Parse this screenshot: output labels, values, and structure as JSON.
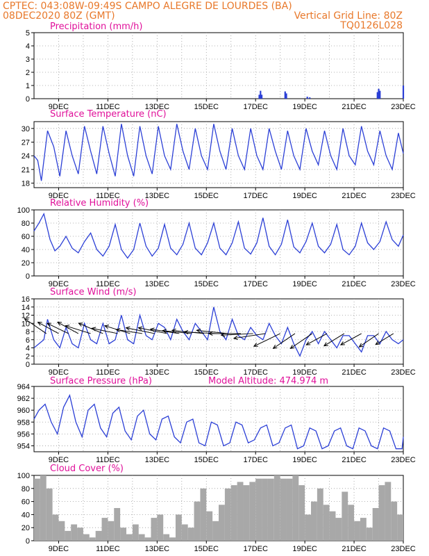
{
  "header": {
    "line1_left": "CPTEC:   043:08W-09:49S   CAMPO ALEGRE DE LOURDES (BA)",
    "line2_left": "08DEC2020 80Z (GMT)",
    "line2_right": "Vertical Grid Line: 80Z",
    "line3_right": "TQ0126L028"
  },
  "colors": {
    "header": "#e8782a",
    "panel_title": "#e0109a",
    "line": "#2b3fd6",
    "bar_precip": "#2b3fd6",
    "bar_cloud": "#a8a8a8",
    "wind_arrow": "#000000",
    "grid": "#9a9a9a"
  },
  "x_axis": {
    "start_day": 8,
    "end_day": 23,
    "ticks": [
      {
        "day": 9,
        "label": "9DEC"
      },
      {
        "day": 11,
        "label": "11DEC"
      },
      {
        "day": 13,
        "label": "13DEC"
      },
      {
        "day": 15,
        "label": "15DEC"
      },
      {
        "day": 17,
        "label": "17DEC"
      },
      {
        "day": 19,
        "label": "19DEC"
      },
      {
        "day": 21,
        "label": "21DEC"
      },
      {
        "day": 23,
        "label": "23DEC"
      }
    ]
  },
  "chart_data": [
    {
      "type": "bar",
      "title": "Precipitation (mm/h)",
      "ylim": [
        0,
        5
      ],
      "yticks": [
        "0",
        "1",
        "2",
        "3",
        "4",
        "5"
      ],
      "grid": true,
      "x": [
        17.15,
        17.2,
        17.25,
        18.2,
        18.25,
        19.1,
        19.2,
        21.95,
        22.0,
        22.05,
        23.0
      ],
      "values": [
        0.3,
        0.6,
        0.3,
        0.55,
        0.4,
        0.15,
        0.1,
        0.5,
        0.75,
        0.6,
        1.0
      ]
    },
    {
      "type": "line",
      "title": "Surface Temperature (nC)",
      "ylim": [
        17,
        31.5
      ],
      "yticks": [
        "18",
        "21",
        "24",
        "27",
        "30"
      ],
      "grid": true,
      "x": [
        8.0,
        8.15,
        8.3,
        8.55,
        8.8,
        9.05,
        9.3,
        9.55,
        9.8,
        10.05,
        10.3,
        10.55,
        10.8,
        11.05,
        11.3,
        11.55,
        11.8,
        12.05,
        12.3,
        12.55,
        12.8,
        13.05,
        13.3,
        13.55,
        13.8,
        14.05,
        14.3,
        14.55,
        14.8,
        15.05,
        15.3,
        15.55,
        15.8,
        16.05,
        16.3,
        16.55,
        16.8,
        17.05,
        17.3,
        17.55,
        17.8,
        18.05,
        18.3,
        18.55,
        18.8,
        19.05,
        19.3,
        19.55,
        19.8,
        20.05,
        20.3,
        20.55,
        20.8,
        21.05,
        21.3,
        21.55,
        21.8,
        22.05,
        22.3,
        22.55,
        22.8,
        23.0
      ],
      "values": [
        24,
        23,
        18.5,
        29.5,
        26,
        19.5,
        29.5,
        24,
        20,
        30.5,
        25,
        20,
        30.5,
        24.5,
        19.5,
        31,
        24,
        19.5,
        30.5,
        24,
        20,
        30.5,
        24,
        21,
        31,
        25,
        21,
        30,
        24,
        21,
        31,
        25,
        21,
        30,
        24,
        21,
        30,
        24,
        21,
        30,
        25,
        21,
        29.5,
        24,
        21,
        30,
        25,
        22,
        29.5,
        24,
        21,
        30,
        24,
        22,
        30.5,
        25,
        22,
        29.5,
        24,
        21,
        29,
        24.5
      ]
    },
    {
      "type": "line",
      "title": "Relative Humidity (%)",
      "ylim": [
        0,
        100
      ],
      "yticks": [
        "0",
        "20",
        "40",
        "60",
        "80",
        "100"
      ],
      "grid": true,
      "x": [
        8.0,
        8.2,
        8.4,
        8.65,
        8.85,
        9.05,
        9.3,
        9.55,
        9.8,
        10.05,
        10.3,
        10.55,
        10.8,
        11.05,
        11.3,
        11.55,
        11.8,
        12.05,
        12.3,
        12.55,
        12.8,
        13.05,
        13.3,
        13.55,
        13.8,
        14.05,
        14.3,
        14.55,
        14.8,
        15.05,
        15.3,
        15.55,
        15.8,
        16.05,
        16.3,
        16.55,
        16.8,
        17.05,
        17.3,
        17.55,
        17.8,
        18.05,
        18.3,
        18.55,
        18.8,
        19.05,
        19.3,
        19.55,
        19.8,
        20.05,
        20.3,
        20.55,
        20.8,
        21.05,
        21.3,
        21.55,
        21.8,
        22.05,
        22.3,
        22.55,
        22.8,
        23.0
      ],
      "values": [
        68,
        80,
        94,
        55,
        38,
        45,
        60,
        42,
        35,
        52,
        65,
        40,
        30,
        45,
        78,
        40,
        27,
        40,
        80,
        45,
        30,
        42,
        78,
        42,
        32,
        48,
        80,
        42,
        32,
        50,
        80,
        42,
        32,
        50,
        82,
        42,
        33,
        50,
        88,
        45,
        32,
        48,
        85,
        44,
        35,
        52,
        80,
        45,
        35,
        48,
        78,
        40,
        32,
        45,
        80,
        50,
        40,
        52,
        82,
        55,
        45,
        62
      ]
    },
    {
      "type": "line",
      "title": "Surface Wind (m/s)",
      "ylim": [
        0,
        16
      ],
      "yticks": [
        "0",
        "2",
        "4",
        "6",
        "8",
        "10",
        "12",
        "14",
        "16"
      ],
      "grid": true,
      "x": [
        8.0,
        8.2,
        8.4,
        8.55,
        8.8,
        9.05,
        9.3,
        9.55,
        9.8,
        10.05,
        10.3,
        10.55,
        10.8,
        11.05,
        11.3,
        11.55,
        11.8,
        12.05,
        12.3,
        12.55,
        12.8,
        13.05,
        13.3,
        13.55,
        13.8,
        14.05,
        14.3,
        14.55,
        14.8,
        15.05,
        15.3,
        15.55,
        15.8,
        16.05,
        16.3,
        16.55,
        16.8,
        17.05,
        17.3,
        17.55,
        17.8,
        18.05,
        18.3,
        18.55,
        18.8,
        19.05,
        19.3,
        19.55,
        19.8,
        20.05,
        20.3,
        20.55,
        20.8,
        21.05,
        21.3,
        21.55,
        21.8,
        22.05,
        22.3,
        22.55,
        22.8,
        23.0
      ],
      "values": [
        4,
        5,
        6,
        11,
        6,
        4,
        9,
        5,
        4,
        10,
        6,
        5,
        10,
        5,
        6,
        12,
        6,
        5,
        12,
        7,
        6,
        10,
        9,
        6,
        11,
        8,
        6,
        10,
        8,
        6,
        14,
        8,
        6,
        11,
        7,
        6,
        9,
        7,
        6,
        10,
        7,
        5,
        9,
        5,
        2,
        6,
        8,
        5,
        8,
        6,
        4,
        7,
        7,
        5,
        3,
        7,
        7,
        5,
        8,
        6,
        5,
        6
      ],
      "arrows_x": [
        8.5,
        9.0,
        9.4,
        9.8,
        10.3,
        10.8,
        11.4,
        11.9,
        12.4,
        12.9,
        13.4,
        13.9,
        14.4,
        14.9,
        15.4,
        15.9,
        16.4,
        16.9,
        17.4,
        18.0,
        18.6,
        19.3,
        19.9,
        20.6,
        21.3,
        22.0,
        22.6
      ],
      "arrows_dir": [
        -0.6,
        -0.5,
        -0.45,
        -0.5,
        -0.3,
        -0.4,
        -0.2,
        -0.3,
        -0.15,
        -0.2,
        -0.2,
        -0.15,
        -0.1,
        -0.1,
        -0.05,
        -0.1,
        0.0,
        0.05,
        0.15,
        0.45,
        0.6,
        0.6,
        0.5,
        0.55,
        0.5,
        0.6,
        0.55
      ],
      "arrows_speed": [
        7,
        6,
        6,
        6,
        7,
        7,
        7,
        7,
        7,
        8,
        8,
        8,
        8,
        9,
        9,
        9,
        9,
        9,
        9,
        8,
        7,
        7,
        6,
        6,
        6,
        6,
        5
      ]
    },
    {
      "type": "line",
      "title": "Surface Pressure (hPa)",
      "annotation": "Model Altitude: 474.974 m",
      "ylim": [
        953,
        964
      ],
      "yticks": [
        "954",
        "956",
        "958",
        "960",
        "962",
        "964"
      ],
      "grid": true,
      "x": [
        8.0,
        8.2,
        8.45,
        8.7,
        8.95,
        9.2,
        9.45,
        9.7,
        9.95,
        10.2,
        10.45,
        10.7,
        10.95,
        11.2,
        11.45,
        11.7,
        11.95,
        12.2,
        12.45,
        12.7,
        12.95,
        13.2,
        13.45,
        13.7,
        13.95,
        14.2,
        14.45,
        14.7,
        14.95,
        15.2,
        15.45,
        15.7,
        15.95,
        16.2,
        16.45,
        16.7,
        16.95,
        17.2,
        17.45,
        17.7,
        17.95,
        18.2,
        18.45,
        18.7,
        18.95,
        19.2,
        19.45,
        19.7,
        19.95,
        20.2,
        20.45,
        20.7,
        20.95,
        21.2,
        21.45,
        21.7,
        21.95,
        22.2,
        22.45,
        22.7,
        22.95,
        23.0
      ],
      "values": [
        958.5,
        960,
        961,
        958,
        956,
        960.5,
        962.5,
        958,
        955.5,
        960,
        961,
        957,
        955.5,
        959.5,
        960.5,
        956.5,
        955,
        959,
        960,
        956,
        955,
        958.5,
        959,
        955.5,
        954.5,
        958,
        958.5,
        954.5,
        954,
        958,
        957.5,
        954,
        954.5,
        958,
        957.5,
        954.5,
        955,
        957,
        957.5,
        954,
        954.5,
        957,
        957.5,
        953.5,
        954,
        957,
        956.5,
        953.5,
        954,
        956.5,
        957,
        954,
        953.5,
        957,
        956.5,
        954,
        953.5,
        957,
        956.5,
        953.5,
        953.5,
        955.5
      ]
    },
    {
      "type": "bar",
      "title": "Cloud Cover (%)",
      "ylim": [
        0,
        100
      ],
      "yticks": [
        "0",
        "20",
        "40",
        "60",
        "80",
        "100"
      ],
      "grid": true,
      "x": [
        8.0,
        8.25,
        8.5,
        8.75,
        9.0,
        9.25,
        9.5,
        9.75,
        10.0,
        10.25,
        10.5,
        10.75,
        11.0,
        11.25,
        11.5,
        11.75,
        12.0,
        12.25,
        12.5,
        12.75,
        13.0,
        13.25,
        13.5,
        13.75,
        14.0,
        14.25,
        14.5,
        14.75,
        15.0,
        15.25,
        15.5,
        15.75,
        16.0,
        16.25,
        16.5,
        16.75,
        17.0,
        17.25,
        17.5,
        17.75,
        18.0,
        18.25,
        18.5,
        18.75,
        19.0,
        19.25,
        19.5,
        19.75,
        20.0,
        20.25,
        20.5,
        20.75,
        21.0,
        21.25,
        21.5,
        21.75,
        22.0,
        22.25,
        22.5,
        22.75
      ],
      "values": [
        95,
        100,
        80,
        40,
        30,
        15,
        25,
        20,
        10,
        5,
        15,
        35,
        30,
        50,
        20,
        10,
        25,
        10,
        5,
        35,
        40,
        10,
        5,
        40,
        25,
        20,
        60,
        80,
        45,
        30,
        55,
        80,
        85,
        90,
        85,
        90,
        95,
        95,
        95,
        100,
        95,
        95,
        100,
        85,
        40,
        60,
        80,
        55,
        45,
        35,
        75,
        55,
        30,
        35,
        20,
        50,
        85,
        90,
        60,
        40
      ]
    }
  ],
  "panels": [
    {
      "title": "Precipitation (mm/h)"
    },
    {
      "title": "Surface Temperature (nC)"
    },
    {
      "title": "Relative Humidity (%)"
    },
    {
      "title": "Surface Wind (m/s)"
    },
    {
      "title": "Surface Pressure (hPa)",
      "annotation": "Model Altitude: 474.974 m"
    },
    {
      "title": "Cloud Cover (%)"
    }
  ]
}
